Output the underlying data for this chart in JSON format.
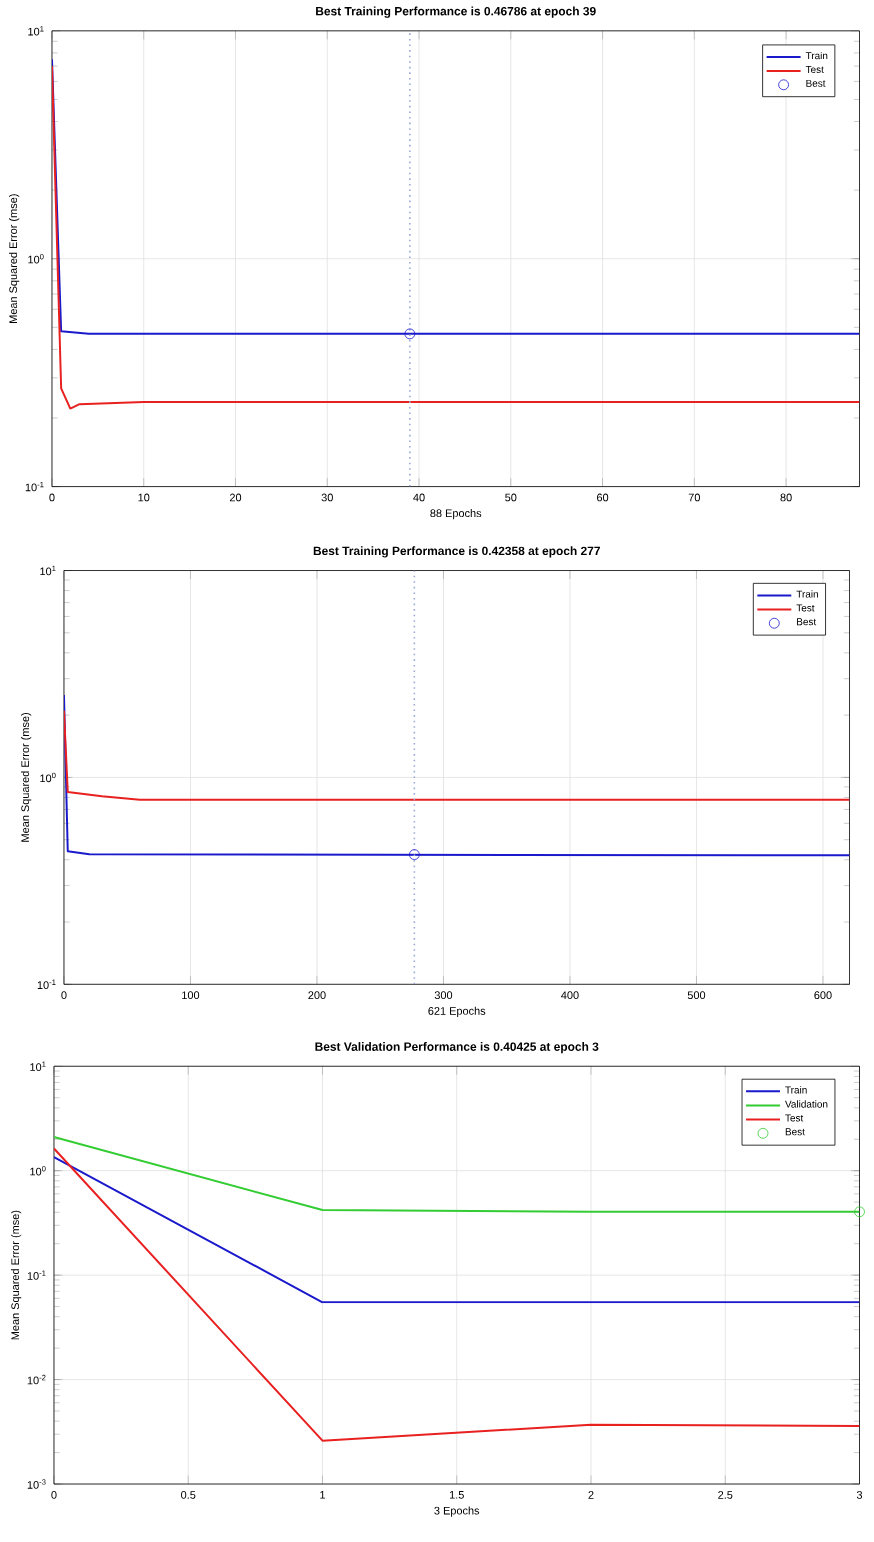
{
  "chart_data": [
    {
      "type": "line",
      "title": "Best Training Performance is 0.46786 at epoch 39",
      "xlabel": "88 Epochs",
      "ylabel": "Mean Squared Error  (mse)",
      "log": "y",
      "grid": true,
      "legend": "top right",
      "xlim": [
        0,
        88
      ],
      "xticks": [
        0,
        10,
        20,
        30,
        40,
        50,
        60,
        70,
        80
      ],
      "ylim": [
        0.1,
        10
      ],
      "yticks": [
        {
          "value": 0.1,
          "label": "10$^{-1}$"
        },
        {
          "value": 1,
          "label": "10$^{0}$"
        },
        {
          "value": 10,
          "label": "10$^{1}$"
        }
      ],
      "series": [
        {
          "name": "Train",
          "color": "#1a1acc",
          "x": [
            0,
            1,
            4,
            88
          ],
          "values": [
            7.5,
            0.48,
            0.468,
            0.468
          ]
        },
        {
          "name": "Test",
          "color": "#e82020",
          "x": [
            0,
            1,
            2,
            3,
            10,
            88
          ],
          "values": [
            7.0,
            0.27,
            0.22,
            0.23,
            0.235,
            0.235
          ]
        },
        {
          "name": "Best",
          "type": "scatter",
          "marker": "circle",
          "color": "#1a1acc",
          "x": [
            39
          ],
          "values": [
            0.46786
          ]
        }
      ],
      "ref_lines": [
        {
          "axis": "x",
          "value": 39,
          "color": "#9aa8d8",
          "line_style": "dotted"
        }
      ]
    },
    {
      "type": "line",
      "title": "Best Training Performance is 0.42358 at epoch 277",
      "xlabel": "621 Epochs",
      "ylabel": "Mean Squared Error  (mse)",
      "log": "y",
      "grid": true,
      "legend": "top right",
      "xlim": [
        0,
        621
      ],
      "xticks": [
        0,
        100,
        200,
        300,
        400,
        500,
        600
      ],
      "ylim": [
        0.1,
        10
      ],
      "yticks": [
        {
          "value": 0.1,
          "label": "10$^{-1}$"
        },
        {
          "value": 1,
          "label": "10$^{0}$"
        },
        {
          "value": 10,
          "label": "10$^{1}$"
        }
      ],
      "series": [
        {
          "name": "Train",
          "color": "#1a1acc",
          "x": [
            0,
            3,
            20,
            621
          ],
          "values": [
            2.5,
            0.44,
            0.425,
            0.42
          ]
        },
        {
          "name": "Test",
          "color": "#e82020",
          "x": [
            0,
            3,
            30,
            60,
            621
          ],
          "values": [
            2.1,
            0.85,
            0.81,
            0.78,
            0.78
          ]
        },
        {
          "name": "Best",
          "type": "scatter",
          "marker": "circle",
          "color": "#1a1acc",
          "x": [
            277
          ],
          "values": [
            0.42358
          ]
        }
      ],
      "ref_lines": [
        {
          "axis": "x",
          "value": 277,
          "color": "#9aa8d8",
          "line_style": "dotted"
        }
      ]
    },
    {
      "type": "line",
      "title": "Best Validation Performance is 0.40425 at epoch 3",
      "xlabel": "3 Epochs",
      "ylabel": "Mean Squared Error  (mse)",
      "log": "y",
      "grid": true,
      "legend": "top right",
      "xlim": [
        0,
        3
      ],
      "xticks": [
        0,
        0.5,
        1,
        1.5,
        2,
        2.5,
        3
      ],
      "ylim": [
        0.001,
        10
      ],
      "yticks": [
        {
          "value": 0.001,
          "label": "10$^{-3}$"
        },
        {
          "value": 0.01,
          "label": "10$^{-2}$"
        },
        {
          "value": 0.1,
          "label": "10$^{-1}$"
        },
        {
          "value": 1,
          "label": "10$^{0}$"
        },
        {
          "value": 10,
          "label": "10$^{1}$"
        }
      ],
      "series": [
        {
          "name": "Train",
          "color": "#1a1acc",
          "x": [
            0,
            1,
            2,
            3
          ],
          "values": [
            1.35,
            0.055,
            0.055,
            0.055
          ]
        },
        {
          "name": "Validation",
          "color": "#33cc33",
          "x": [
            0,
            1,
            2,
            3
          ],
          "values": [
            2.1,
            0.42,
            0.40425,
            0.40425
          ]
        },
        {
          "name": "Test",
          "color": "#e82020",
          "x": [
            0,
            1,
            2,
            3
          ],
          "values": [
            1.63,
            0.0026,
            0.0037,
            0.0036
          ]
        },
        {
          "name": "Best",
          "type": "scatter",
          "marker": "circle",
          "color": "#33cc33",
          "x": [
            3
          ],
          "values": [
            0.40425
          ]
        }
      ]
    }
  ]
}
